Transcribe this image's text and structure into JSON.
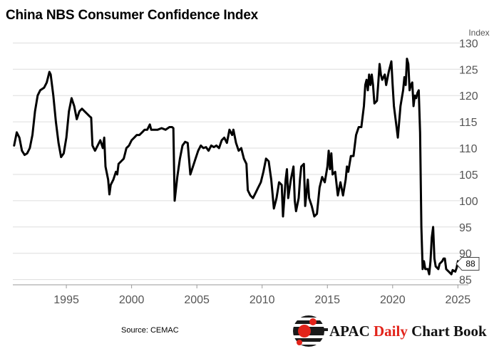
{
  "title": "China NBS Consumer Confidence Index",
  "source": "Source: CEMAC",
  "brand": {
    "part1": "APAC",
    "part2": "Daily",
    "part3": "Chart Book"
  },
  "colors": {
    "line": "#000000",
    "grid": "#dddddd",
    "axis_text": "#555555",
    "brand_red": "#e2231a"
  },
  "chart_data": {
    "type": "line",
    "title": "China NBS Consumer Confidence Index",
    "ylabel": "Index",
    "xlabel": "",
    "ylim": [
      84,
      131
    ],
    "xlim": [
      1990.9,
      2025.8
    ],
    "yticks": [
      85,
      90,
      95,
      100,
      105,
      110,
      115,
      120,
      125,
      130
    ],
    "xticks": [
      1995,
      2000,
      2005,
      2010,
      2015,
      2020,
      2025
    ],
    "grid": true,
    "axis_side": "right",
    "last_value_label": "88",
    "series": [
      {
        "points": [
          [
            1991.0,
            110.5
          ],
          [
            1991.2,
            113.0
          ],
          [
            1991.4,
            112.0
          ],
          [
            1991.6,
            109.5
          ],
          [
            1991.8,
            108.7
          ],
          [
            1992.0,
            109.0
          ],
          [
            1992.2,
            110.0
          ],
          [
            1992.4,
            112.5
          ],
          [
            1992.6,
            117.0
          ],
          [
            1992.8,
            120.0
          ],
          [
            1993.0,
            121.0
          ],
          [
            1993.3,
            121.5
          ],
          [
            1993.5,
            122.5
          ],
          [
            1993.7,
            124.5
          ],
          [
            1993.8,
            124.0
          ],
          [
            1994.0,
            120.0
          ],
          [
            1994.2,
            115.0
          ],
          [
            1994.4,
            111.0
          ],
          [
            1994.6,
            108.3
          ],
          [
            1994.8,
            109.0
          ],
          [
            1995.0,
            112.0
          ],
          [
            1995.2,
            117.0
          ],
          [
            1995.4,
            119.5
          ],
          [
            1995.6,
            118.0
          ],
          [
            1995.8,
            115.5
          ],
          [
            1996.0,
            117.0
          ],
          [
            1996.2,
            117.5
          ],
          [
            1996.4,
            117.0
          ],
          [
            1996.6,
            116.5
          ],
          [
            1996.8,
            116.0
          ],
          [
            1996.9,
            115.8
          ],
          [
            1997.0,
            110.5
          ],
          [
            1997.2,
            109.5
          ],
          [
            1997.4,
            110.5
          ],
          [
            1997.6,
            111.5
          ],
          [
            1997.8,
            110.0
          ],
          [
            1997.9,
            112.0
          ],
          [
            1998.0,
            106.5
          ],
          [
            1998.2,
            104.0
          ],
          [
            1998.3,
            101.2
          ],
          [
            1998.4,
            103.0
          ],
          [
            1998.6,
            104.0
          ],
          [
            1998.8,
            105.5
          ],
          [
            1998.9,
            105.0
          ],
          [
            1999.0,
            107.0
          ],
          [
            1999.2,
            107.5
          ],
          [
            1999.4,
            108.0
          ],
          [
            1999.5,
            109.0
          ],
          [
            1999.6,
            110.0
          ],
          [
            1999.8,
            110.5
          ],
          [
            2000.0,
            111.5
          ],
          [
            2000.2,
            112.0
          ],
          [
            2000.4,
            112.5
          ],
          [
            2000.6,
            112.5
          ],
          [
            2000.8,
            113.0
          ],
          [
            2001.0,
            113.5
          ],
          [
            2001.2,
            113.5
          ],
          [
            2001.4,
            114.5
          ],
          [
            2001.5,
            113.5
          ],
          [
            2001.7,
            113.5
          ],
          [
            2002.0,
            113.5
          ],
          [
            2002.3,
            113.8
          ],
          [
            2002.6,
            113.5
          ],
          [
            2002.9,
            114.0
          ],
          [
            2003.1,
            114.0
          ],
          [
            2003.2,
            113.8
          ],
          [
            2003.3,
            100.0
          ],
          [
            2003.5,
            104.5
          ],
          [
            2003.7,
            108.0
          ],
          [
            2003.9,
            110.5
          ],
          [
            2004.1,
            111.2
          ],
          [
            2004.3,
            111.0
          ],
          [
            2004.5,
            105.0
          ],
          [
            2004.7,
            106.5
          ],
          [
            2004.9,
            108.0
          ],
          [
            2005.1,
            109.5
          ],
          [
            2005.3,
            110.5
          ],
          [
            2005.5,
            110.0
          ],
          [
            2005.7,
            110.2
          ],
          [
            2005.9,
            109.5
          ],
          [
            2006.1,
            110.5
          ],
          [
            2006.3,
            110.2
          ],
          [
            2006.5,
            110.5
          ],
          [
            2006.7,
            110.0
          ],
          [
            2006.9,
            111.5
          ],
          [
            2007.1,
            112.0
          ],
          [
            2007.3,
            111.0
          ],
          [
            2007.5,
            113.5
          ],
          [
            2007.7,
            112.5
          ],
          [
            2007.8,
            113.5
          ],
          [
            2008.0,
            111.0
          ],
          [
            2008.2,
            109.5
          ],
          [
            2008.4,
            110.0
          ],
          [
            2008.6,
            108.0
          ],
          [
            2008.8,
            107.0
          ],
          [
            2008.9,
            102.0
          ],
          [
            2009.1,
            101.0
          ],
          [
            2009.3,
            100.5
          ],
          [
            2009.5,
            101.5
          ],
          [
            2009.7,
            102.5
          ],
          [
            2009.9,
            103.5
          ],
          [
            2010.1,
            105.5
          ],
          [
            2010.3,
            108.0
          ],
          [
            2010.5,
            107.5
          ],
          [
            2010.7,
            104.0
          ],
          [
            2010.9,
            98.5
          ],
          [
            2011.1,
            100.5
          ],
          [
            2011.3,
            103.5
          ],
          [
            2011.5,
            103.0
          ],
          [
            2011.6,
            97.0
          ],
          [
            2011.8,
            104.0
          ],
          [
            2011.9,
            106.0
          ],
          [
            2012.0,
            100.5
          ],
          [
            2012.2,
            104.0
          ],
          [
            2012.4,
            106.5
          ],
          [
            2012.5,
            100.0
          ],
          [
            2012.6,
            98.0
          ],
          [
            2012.8,
            100.5
          ],
          [
            2012.9,
            104.0
          ],
          [
            2013.0,
            106.5
          ],
          [
            2013.2,
            107.0
          ],
          [
            2013.3,
            99.0
          ],
          [
            2013.5,
            104.0
          ],
          [
            2013.6,
            100.5
          ],
          [
            2013.8,
            99.0
          ],
          [
            2014.0,
            97.0
          ],
          [
            2014.2,
            97.5
          ],
          [
            2014.4,
            102.5
          ],
          [
            2014.6,
            104.5
          ],
          [
            2014.8,
            103.5
          ],
          [
            2015.0,
            106.5
          ],
          [
            2015.1,
            109.5
          ],
          [
            2015.2,
            106.0
          ],
          [
            2015.3,
            109.0
          ],
          [
            2015.4,
            105.0
          ],
          [
            2015.6,
            105.5
          ],
          [
            2015.8,
            101.0
          ],
          [
            2016.0,
            103.5
          ],
          [
            2016.2,
            101.0
          ],
          [
            2016.4,
            104.0
          ],
          [
            2016.5,
            106.5
          ],
          [
            2016.6,
            105.5
          ],
          [
            2016.8,
            108.5
          ],
          [
            2017.0,
            108.5
          ],
          [
            2017.2,
            112.5
          ],
          [
            2017.4,
            114.0
          ],
          [
            2017.6,
            114.0
          ],
          [
            2017.8,
            118.0
          ],
          [
            2017.9,
            122.0
          ],
          [
            2018.0,
            123.0
          ],
          [
            2018.1,
            121.0
          ],
          [
            2018.2,
            124.0
          ],
          [
            2018.3,
            122.0
          ],
          [
            2018.4,
            124.0
          ],
          [
            2018.5,
            122.0
          ],
          [
            2018.6,
            118.5
          ],
          [
            2018.8,
            119.0
          ],
          [
            2018.9,
            122.5
          ],
          [
            2019.0,
            126.0
          ],
          [
            2019.1,
            124.0
          ],
          [
            2019.2,
            123.0
          ],
          [
            2019.4,
            124.0
          ],
          [
            2019.5,
            122.0
          ],
          [
            2019.7,
            124.5
          ],
          [
            2019.9,
            126.5
          ],
          [
            2020.0,
            122.0
          ],
          [
            2020.1,
            118.0
          ],
          [
            2020.3,
            114.0
          ],
          [
            2020.4,
            112.0
          ],
          [
            2020.6,
            118.0
          ],
          [
            2020.8,
            121.0
          ],
          [
            2020.9,
            123.5
          ],
          [
            2021.0,
            122.0
          ],
          [
            2021.1,
            127.0
          ],
          [
            2021.2,
            126.0
          ],
          [
            2021.3,
            121.0
          ],
          [
            2021.4,
            122.0
          ],
          [
            2021.5,
            122.5
          ],
          [
            2021.6,
            118.0
          ],
          [
            2021.7,
            120.0
          ],
          [
            2021.8,
            119.5
          ],
          [
            2021.9,
            120.5
          ],
          [
            2022.0,
            121.0
          ],
          [
            2022.1,
            113.0
          ],
          [
            2022.2,
            95.0
          ],
          [
            2022.3,
            87.0
          ],
          [
            2022.4,
            88.5
          ],
          [
            2022.5,
            87.0
          ],
          [
            2022.7,
            87.0
          ],
          [
            2022.8,
            86.0
          ],
          [
            2022.9,
            88.5
          ],
          [
            2023.0,
            93.0
          ],
          [
            2023.1,
            95.0
          ],
          [
            2023.2,
            89.0
          ],
          [
            2023.3,
            87.5
          ],
          [
            2023.5,
            87.0
          ],
          [
            2023.6,
            88.0
          ],
          [
            2023.8,
            88.5
          ],
          [
            2023.9,
            89.0
          ],
          [
            2024.0,
            89.0
          ],
          [
            2024.1,
            87.0
          ],
          [
            2024.3,
            86.5
          ],
          [
            2024.5,
            86.0
          ],
          [
            2024.6,
            86.8
          ],
          [
            2024.8,
            86.5
          ],
          [
            2024.9,
            87.2
          ],
          [
            2025.0,
            88.5
          ],
          [
            2025.1,
            87.5
          ],
          [
            2025.3,
            88.0
          ]
        ]
      }
    ]
  }
}
